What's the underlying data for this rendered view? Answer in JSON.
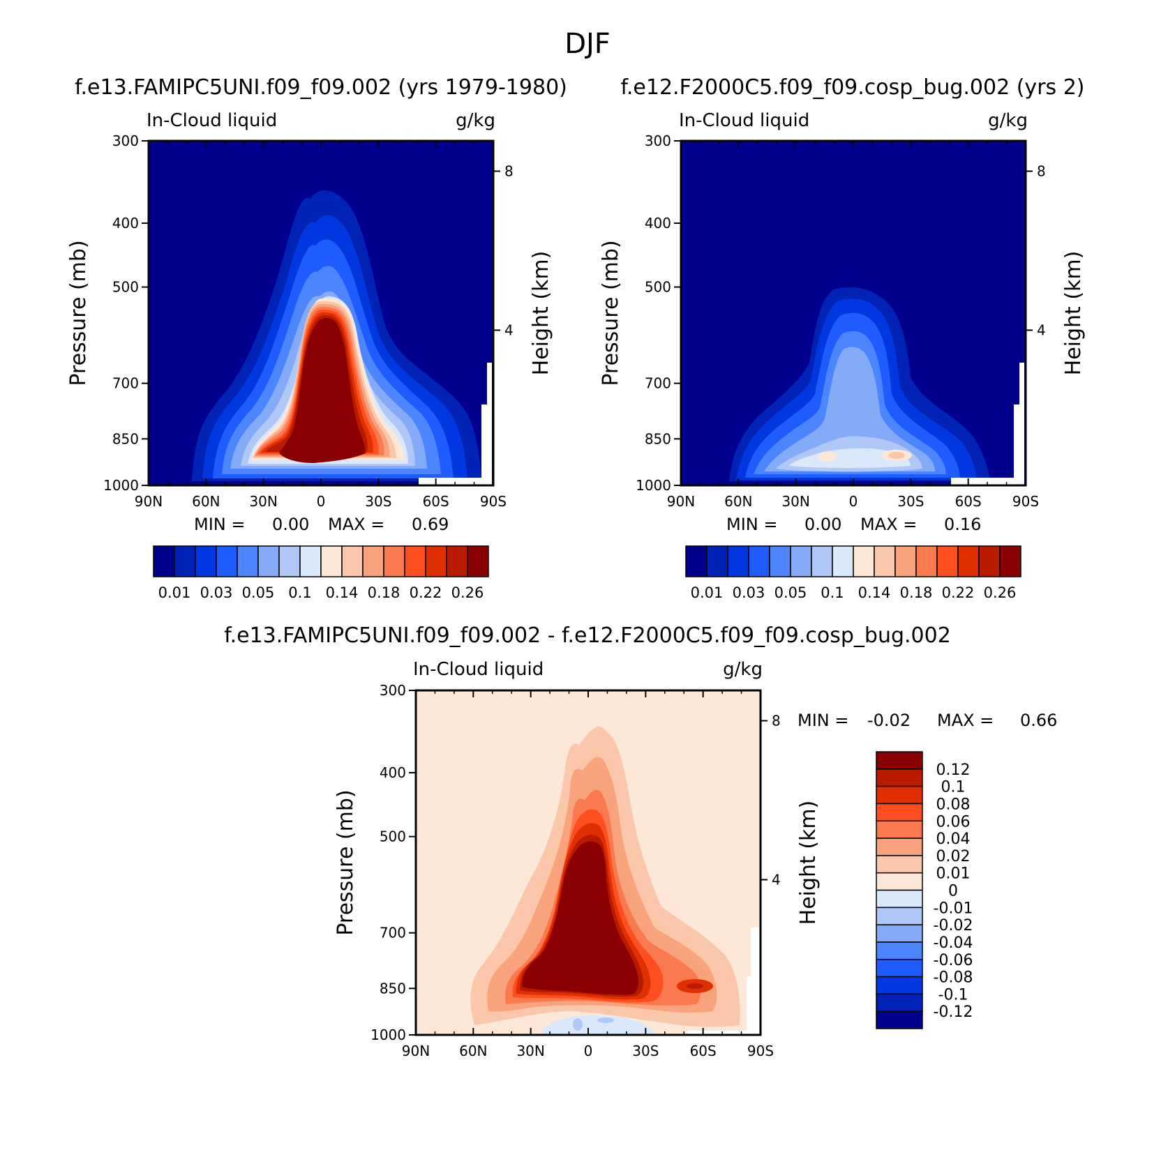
{
  "figure_title": "DJF",
  "chart_data": [
    {
      "type": "heatmap",
      "subtype": "filled-contour latitude-pressure cross section",
      "title": "f.e13.FAMIPC5UNI.f09_f09.002 (yrs 1979-1980)",
      "left_label": "In-Cloud liquid",
      "right_label": "g/kg",
      "xlabel": "",
      "ylabel": "Pressure (mb)",
      "ylabel_right": "Height (km)",
      "xticks": [
        "90N",
        "60N",
        "30N",
        "0",
        "30S",
        "60S",
        "90S"
      ],
      "x_values": [
        90,
        60,
        30,
        0,
        -30,
        -60,
        -90
      ],
      "yticks": [
        "300",
        "400",
        "500",
        "700",
        "850",
        "1000"
      ],
      "y_values": [
        300,
        400,
        500,
        700,
        850,
        1000
      ],
      "yticks_right": [
        "8",
        "4"
      ],
      "ylim": [
        300,
        1000
      ],
      "stats_min_label": "MIN =",
      "stats_min": "0.00",
      "stats_max_label": "MAX =",
      "stats_max": "0.69",
      "colorbar_labels": [
        "0.01",
        "0.03",
        "0.05",
        "0.1",
        "0.14",
        "0.18",
        "0.22",
        "0.26"
      ],
      "colorbar_levels": [
        0.01,
        0.02,
        0.03,
        0.04,
        0.05,
        0.075,
        0.1,
        0.12,
        0.14,
        0.16,
        0.18,
        0.2,
        0.22,
        0.24,
        0.26
      ],
      "colors": [
        "#00008c",
        "#0022b5",
        "#0037e0",
        "#1f5cff",
        "#4d85ff",
        "#85aaf8",
        "#b0c8f8",
        "#d9e8fb",
        "#fde8d7",
        "#fbc7ab",
        "#f9a27e",
        "#f97a4e",
        "#ff4e1f",
        "#e02f00",
        "#b81a00",
        "#8a0000"
      ]
    },
    {
      "type": "heatmap",
      "subtype": "filled-contour latitude-pressure cross section",
      "title": "f.e12.F2000C5.f09_f09.cosp_bug.002 (yrs 2)",
      "left_label": "In-Cloud liquid",
      "right_label": "g/kg",
      "xlabel": "",
      "ylabel": "Pressure (mb)",
      "ylabel_right": "Height (km)",
      "xticks": [
        "90N",
        "60N",
        "30N",
        "0",
        "30S",
        "60S",
        "90S"
      ],
      "x_values": [
        90,
        60,
        30,
        0,
        -30,
        -60,
        -90
      ],
      "yticks": [
        "300",
        "400",
        "500",
        "700",
        "850",
        "1000"
      ],
      "y_values": [
        300,
        400,
        500,
        700,
        850,
        1000
      ],
      "yticks_right": [
        "8",
        "4"
      ],
      "ylim": [
        300,
        1000
      ],
      "stats_min_label": "MIN =",
      "stats_min": "0.00",
      "stats_max_label": "MAX =",
      "stats_max": "0.16",
      "colorbar_labels": [
        "0.01",
        "0.03",
        "0.05",
        "0.1",
        "0.14",
        "0.18",
        "0.22",
        "0.26"
      ],
      "colorbar_levels": [
        0.01,
        0.02,
        0.03,
        0.04,
        0.05,
        0.075,
        0.1,
        0.12,
        0.14,
        0.16,
        0.18,
        0.2,
        0.22,
        0.24,
        0.26
      ],
      "colors": [
        "#00008c",
        "#0022b5",
        "#0037e0",
        "#1f5cff",
        "#4d85ff",
        "#85aaf8",
        "#b0c8f8",
        "#d9e8fb",
        "#fde8d7",
        "#fbc7ab",
        "#f9a27e",
        "#f97a4e",
        "#ff4e1f",
        "#e02f00",
        "#b81a00",
        "#8a0000"
      ]
    },
    {
      "type": "heatmap",
      "subtype": "filled-contour difference cross section",
      "title": "f.e13.FAMIPC5UNI.f09_f09.002 - f.e12.F2000C5.f09_f09.cosp_bug.002",
      "left_label": "In-Cloud liquid",
      "right_label": "g/kg",
      "xlabel": "",
      "ylabel": "Pressure (mb)",
      "ylabel_right": "Height (km)",
      "xticks": [
        "90N",
        "60N",
        "30N",
        "0",
        "30S",
        "60S",
        "90S"
      ],
      "x_values": [
        90,
        60,
        30,
        0,
        -30,
        -60,
        -90
      ],
      "yticks": [
        "300",
        "400",
        "500",
        "700",
        "850",
        "1000"
      ],
      "y_values": [
        300,
        400,
        500,
        700,
        850,
        1000
      ],
      "yticks_right": [
        "8",
        "4"
      ],
      "ylim": [
        300,
        1000
      ],
      "stats_min_label": "MIN =",
      "stats_min": "-0.02",
      "stats_max_label": "MAX =",
      "stats_max": "0.66",
      "colorbar_labels": [
        "0.12",
        "0.1",
        "0.08",
        "0.06",
        "0.04",
        "0.02",
        "0.01",
        "0",
        "-0.01",
        "-0.02",
        "-0.04",
        "-0.06",
        "-0.08",
        "-0.1",
        "-0.12"
      ],
      "colors": [
        "#8a0000",
        "#b81a00",
        "#e02f00",
        "#ff4e1f",
        "#f97a4e",
        "#f9a27e",
        "#fbc7ab",
        "#fde8d7",
        "#d9e8fb",
        "#b0c8f8",
        "#85aaf8",
        "#4d85ff",
        "#1f5cff",
        "#0037e0",
        "#0022b5",
        "#00008c"
      ]
    }
  ]
}
